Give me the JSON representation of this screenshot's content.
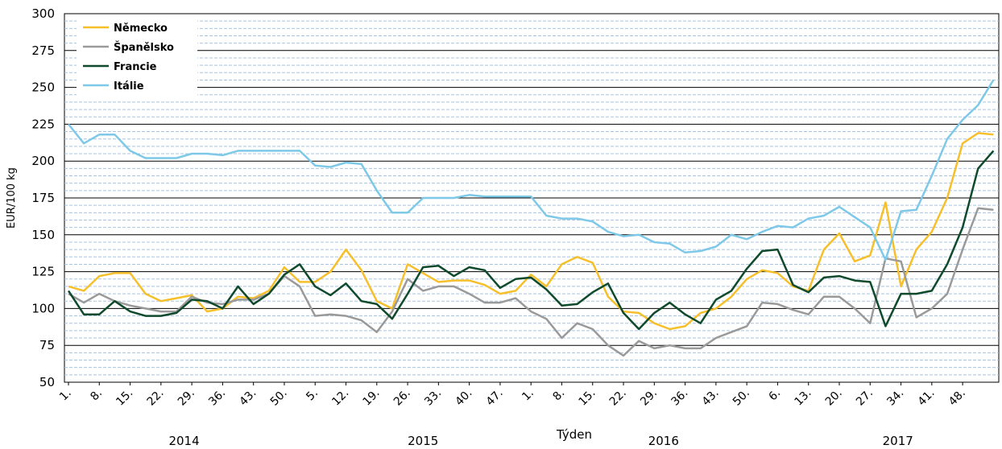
{
  "chart_data": {
    "type": "line",
    "y_label": "EUR/100 kg",
    "x_label": "Týden",
    "year_labels": [
      "2014",
      "2015",
      "2016",
      "2017"
    ],
    "categories": [
      "1.",
      null,
      "8.",
      null,
      "15.",
      null,
      "22.",
      null,
      "29.",
      null,
      "36.",
      null,
      "43.",
      null,
      "50.",
      null,
      "5.",
      null,
      "12.",
      null,
      "19.",
      null,
      "26.",
      null,
      "33.",
      null,
      "40.",
      null,
      "47.",
      null,
      "1.",
      null,
      "8.",
      null,
      "15.",
      null,
      "22.",
      null,
      "29.",
      null,
      "36.",
      null,
      "43.",
      null,
      "50.",
      null,
      "6.",
      null,
      "13.",
      null,
      "20.",
      null,
      "27.",
      null,
      "34.",
      null,
      "41.",
      null,
      "48.",
      null,
      null
    ],
    "series": [
      {
        "name": "Německo",
        "color": "#f5c02c",
        "values": [
          115,
          112,
          122,
          124,
          124,
          110,
          105,
          107,
          109,
          98,
          100,
          108,
          107,
          112,
          128,
          118,
          118,
          125,
          140,
          126,
          105,
          100,
          130,
          124,
          118,
          119,
          119,
          116,
          110,
          112,
          123,
          115,
          130,
          135,
          131,
          108,
          98,
          97,
          90,
          86,
          88,
          97,
          100,
          108,
          120,
          126,
          124,
          115,
          112,
          140,
          151,
          132,
          136,
          172,
          115,
          140,
          152,
          175,
          212,
          219,
          218
        ]
      },
      {
        "name": "Španělsko",
        "color": "#9a9a9a",
        "values": [
          110,
          104,
          110,
          105,
          102,
          100,
          98,
          98,
          108,
          104,
          103,
          106,
          106,
          110,
          122,
          115,
          95,
          96,
          95,
          92,
          84,
          98,
          120,
          112,
          115,
          115,
          110,
          104,
          104,
          107,
          98,
          93,
          80,
          90,
          86,
          75,
          68,
          78,
          73,
          75,
          73,
          73,
          80,
          84,
          88,
          104,
          103,
          99,
          96,
          108,
          108,
          100,
          90,
          134,
          132,
          94,
          100,
          110,
          140,
          168,
          167
        ]
      },
      {
        "name": "Francie",
        "color": "#0f4a2c",
        "values": [
          112,
          96,
          96,
          105,
          98,
          95,
          95,
          97,
          106,
          105,
          100,
          115,
          103,
          110,
          123,
          130,
          115,
          109,
          117,
          105,
          103,
          93,
          110,
          128,
          129,
          122,
          128,
          126,
          114,
          120,
          121,
          113,
          102,
          103,
          111,
          117,
          97,
          86,
          97,
          104,
          96,
          90,
          106,
          112,
          127,
          139,
          140,
          116,
          111,
          121,
          122,
          119,
          118,
          88,
          110,
          110,
          112,
          130,
          155,
          195,
          207
        ]
      },
      {
        "name": "Itálie",
        "color": "#7ec8e8",
        "values": [
          225,
          212,
          218,
          218,
          207,
          202,
          202,
          202,
          205,
          205,
          204,
          207,
          207,
          207,
          207,
          207,
          197,
          196,
          199,
          198,
          180,
          165,
          165,
          175,
          175,
          175,
          177,
          176,
          176,
          176,
          176,
          163,
          161,
          161,
          159,
          152,
          149,
          150,
          145,
          144,
          138,
          139,
          142,
          150,
          147,
          152,
          156,
          155,
          161,
          163,
          169,
          162,
          155,
          133,
          166,
          167,
          190,
          215,
          228,
          238,
          255
        ]
      }
    ],
    "ylim": [
      50,
      300
    ],
    "yticks": [
      50,
      75,
      100,
      125,
      150,
      175,
      200,
      225,
      250,
      275,
      300
    ],
    "y_minor_ticks": [
      55,
      60,
      65,
      70,
      80,
      85,
      90,
      95,
      105,
      110,
      115,
      120,
      130,
      135,
      140,
      145,
      155,
      160,
      165,
      170,
      180,
      185,
      190,
      195,
      205,
      210,
      215,
      220,
      230,
      235,
      240,
      245,
      255,
      260,
      265,
      270,
      280,
      285,
      290,
      295
    ],
    "grid": true,
    "legend": "upper left"
  }
}
